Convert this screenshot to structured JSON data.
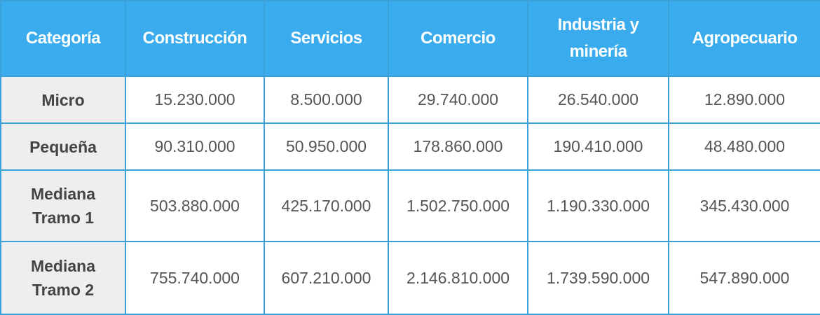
{
  "colors": {
    "header_bg": "#3aacee",
    "border": "#3aa0d8",
    "row_header_bg": "#eeeeee",
    "header_text": "#ffffff",
    "cell_text": "#555555"
  },
  "table": {
    "headers": [
      "Categoría",
      "Construcción",
      "Servicios",
      "Comercio",
      "Industria y\nminería",
      "Agropecuario"
    ],
    "rows": [
      {
        "label": "Micro",
        "values": [
          "15.230.000",
          "8.500.000",
          "29.740.000",
          "26.540.000",
          "12.890.000"
        ]
      },
      {
        "label": "Pequeña",
        "values": [
          "90.310.000",
          "50.950.000",
          "178.860.000",
          "190.410.000",
          "48.480.000"
        ]
      },
      {
        "label": "Mediana\nTramo 1",
        "values": [
          "503.880.000",
          "425.170.000",
          "1.502.750.000",
          "1.190.330.000",
          "345.430.000"
        ]
      },
      {
        "label": "Mediana\nTramo 2",
        "values": [
          "755.740.000",
          "607.210.000",
          "2.146.810.000",
          "1.739.590.000",
          "547.890.000"
        ]
      }
    ]
  }
}
